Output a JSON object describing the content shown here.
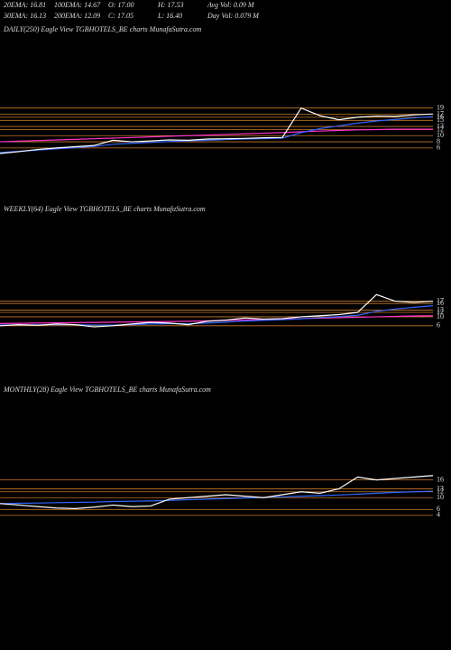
{
  "header": {
    "row1": [
      "20EMA: 16.81",
      "100EMA: 14.67",
      "O: 17.00",
      "H: 17.53",
      "Avg Vol: 0.09 M"
    ],
    "row2": [
      "30EMA: 16.13",
      "200EMA: 12.09",
      "C: 17.05",
      "L: 16.40",
      "Day Vol: 0.079 M"
    ]
  },
  "chart_data": [
    {
      "type": "line",
      "title": "DAILY(250) Eagle   View   TGBHOTELS_BE charts MunafaSutra.com",
      "ylim": [
        -12,
        46
      ],
      "yticks": [
        6,
        8,
        10,
        12,
        13,
        15,
        16,
        17,
        19
      ],
      "grid": true,
      "grid_color": "#c87a2a",
      "series": [
        {
          "color": "#ff33cc",
          "values": [
            8.0,
            8.2,
            8.4,
            8.6,
            8.8,
            9.0,
            9.2,
            9.4,
            9.6,
            9.8,
            10.0,
            10.2,
            10.4,
            10.6,
            10.8,
            11.0,
            11.3,
            11.5,
            11.7,
            11.9,
            12.0,
            12.1,
            12.1,
            12.1
          ]
        },
        {
          "color": "#3366ff",
          "values": [
            4.5,
            4.9,
            5.3,
            5.7,
            6.1,
            6.5,
            7.2,
            7.5,
            7.8,
            8.1,
            8.3,
            8.5,
            8.7,
            8.9,
            9.0,
            9.2,
            11.0,
            12.3,
            13.2,
            14.1,
            14.8,
            15.3,
            15.8,
            16.2
          ]
        },
        {
          "color": "#ffffff",
          "values": [
            4.2,
            4.8,
            5.5,
            6.0,
            6.4,
            6.8,
            8.5,
            8.0,
            8.3,
            8.6,
            8.5,
            8.9,
            9.0,
            9.1,
            9.3,
            9.4,
            19.0,
            16.5,
            15.2,
            16.0,
            16.4,
            16.3,
            16.8,
            17.05
          ]
        }
      ]
    },
    {
      "type": "line",
      "title": "WEEKLY(64) Eagle   View   TGBHOTELS_BE charts MunafaSutra.com",
      "ylim": [
        -18,
        55
      ],
      "yticks": [
        6,
        10,
        12,
        13,
        16,
        17
      ],
      "grid": true,
      "grid_color": "#c87a2a",
      "series": [
        {
          "color": "#ff33cc",
          "values": [
            7.0,
            7.1,
            7.2,
            7.3,
            7.4,
            7.5,
            7.6,
            7.7,
            7.8,
            7.9,
            8.0,
            8.2,
            8.4,
            8.6,
            8.8,
            9.0,
            9.2,
            9.4,
            9.6,
            9.8,
            10.0,
            10.2,
            10.4,
            10.5
          ]
        },
        {
          "color": "#3366ff",
          "values": [
            6.3,
            6.4,
            6.4,
            6.5,
            6.5,
            6.3,
            6.3,
            6.5,
            6.8,
            6.9,
            6.9,
            7.2,
            7.6,
            8.1,
            8.4,
            8.7,
            9.1,
            9.6,
            10.1,
            10.7,
            12.5,
            13.5,
            14.3,
            15.0
          ]
        },
        {
          "color": "#ffffff",
          "values": [
            6.0,
            6.5,
            6.2,
            6.8,
            6.5,
            5.5,
            6.0,
            6.8,
            7.5,
            7.2,
            6.5,
            8.0,
            8.5,
            9.5,
            9.0,
            9.2,
            10.0,
            10.5,
            11.0,
            12.0,
            20.0,
            17.0,
            16.5,
            17.0
          ]
        }
      ]
    },
    {
      "type": "line",
      "title": "MONTHLY(28) Eagle   View   TGBHOTELS_BE charts MunafaSutra.com",
      "ylim": [
        -11,
        44
      ],
      "yticks": [
        4,
        6,
        10,
        12,
        13,
        16
      ],
      "grid": true,
      "grid_color": "#c87a2a",
      "series": [
        {
          "color": "#3366ff",
          "values": [
            8.0,
            8.1,
            8.2,
            8.3,
            8.4,
            8.5,
            8.7,
            8.8,
            8.9,
            9.1,
            9.3,
            9.5,
            9.7,
            9.9,
            10.1,
            10.3,
            10.5,
            10.7,
            10.9,
            11.2,
            11.5,
            11.8,
            12.0,
            12.2
          ]
        },
        {
          "color": "#ffffff",
          "values": [
            8.0,
            7.5,
            7.0,
            6.5,
            6.3,
            6.8,
            7.5,
            7.0,
            7.2,
            9.5,
            10.0,
            10.5,
            11.0,
            10.5,
            10.0,
            11.0,
            12.0,
            11.5,
            13.0,
            17.0,
            16.0,
            16.5,
            17.0,
            17.5
          ]
        }
      ]
    }
  ]
}
